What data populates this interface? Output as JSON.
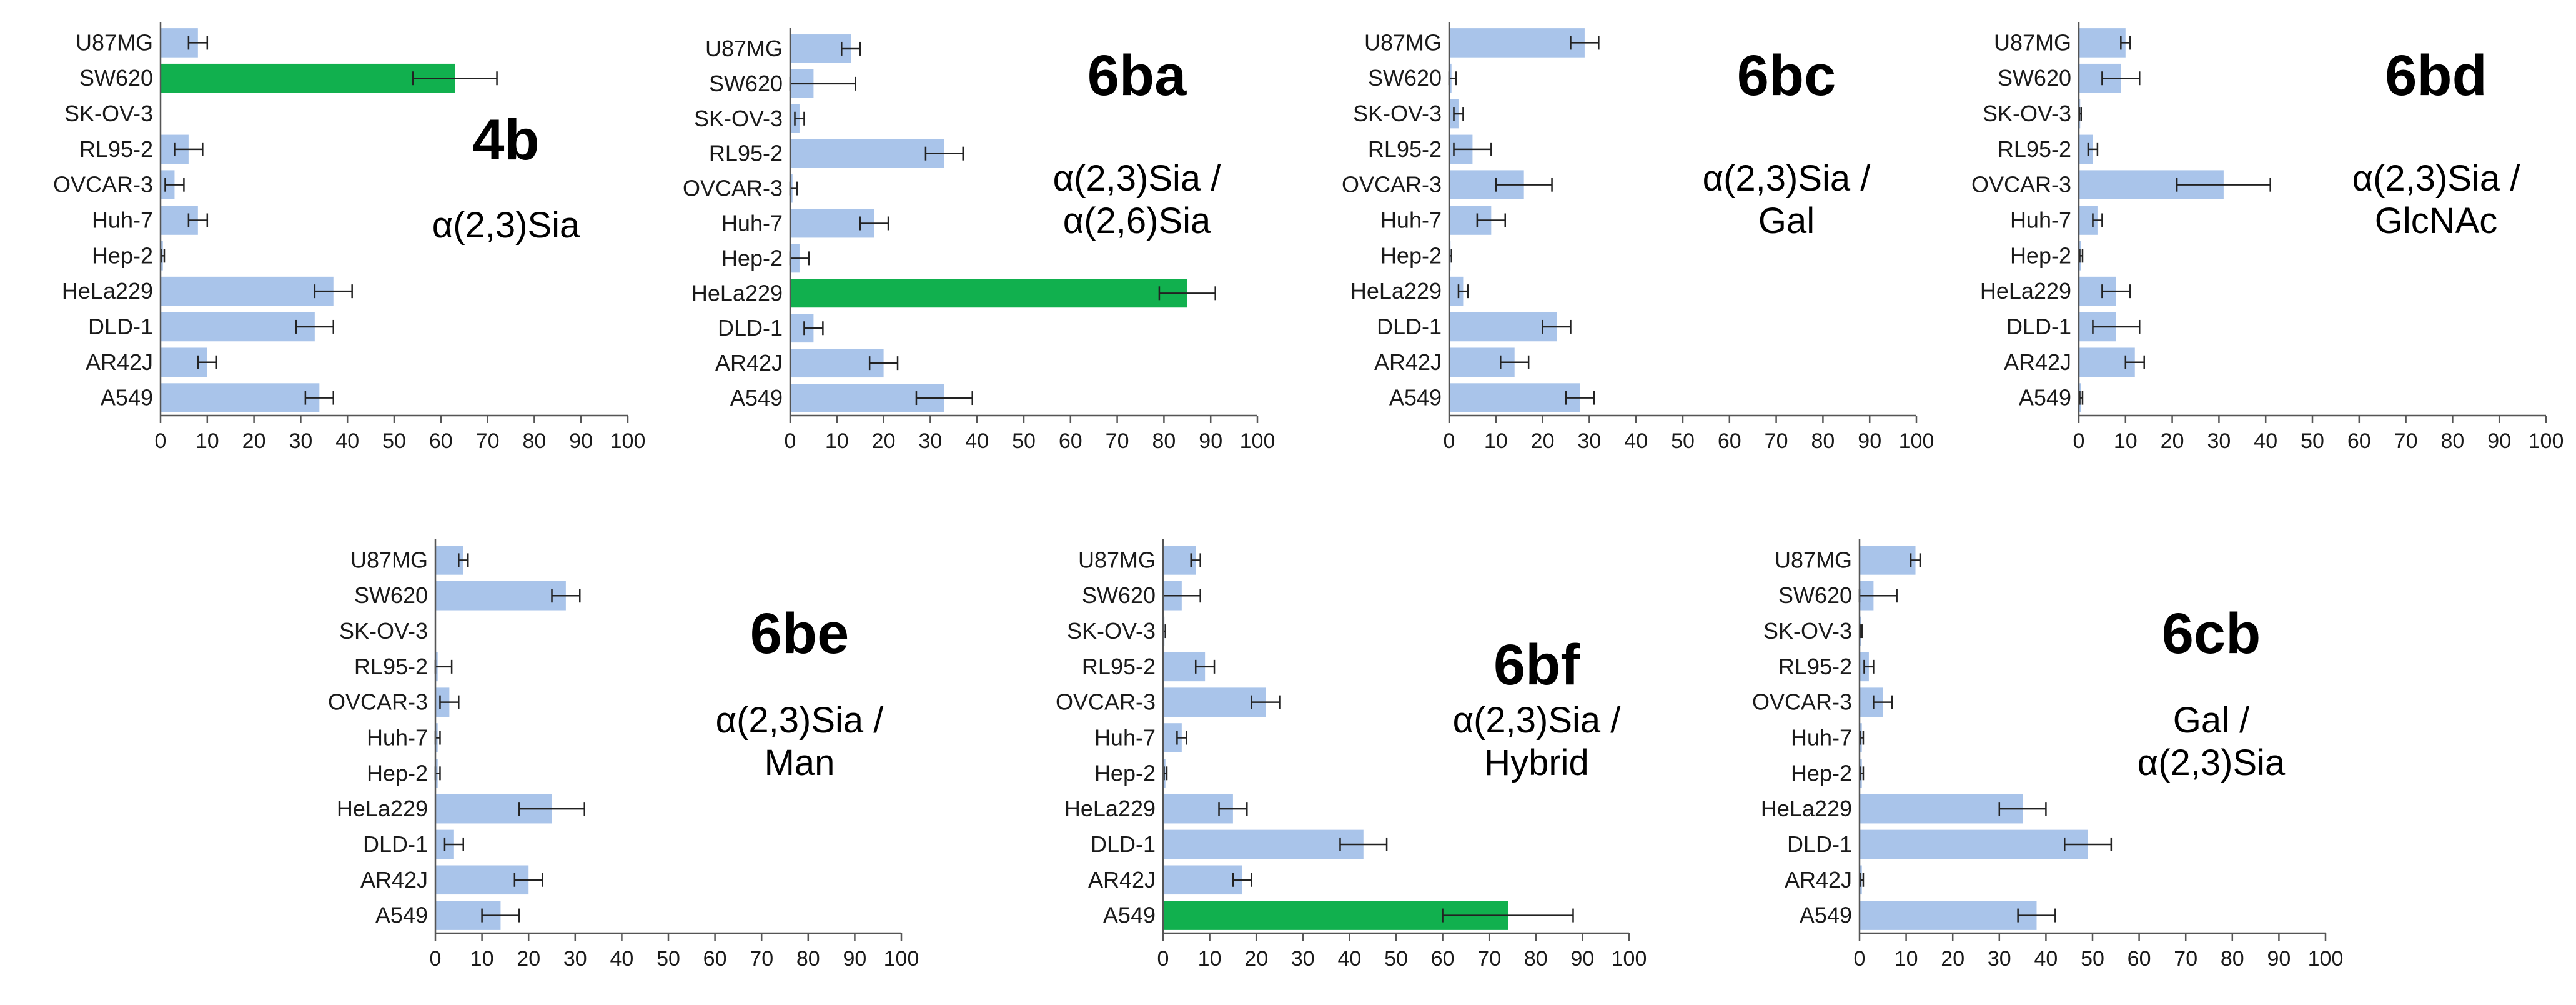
{
  "colors": {
    "bar": "#a9c4ea",
    "highlight": "#11b04e",
    "axis": "#555555",
    "error": "#222222"
  },
  "chart_data": [
    {
      "type": "bar",
      "orientation": "horizontal",
      "title": "4b",
      "subtitle": [
        "α(2,3)Sia"
      ],
      "categories": [
        "U87MG",
        "SW620",
        "SK-OV-3",
        "RL95-2",
        "OVCAR-3",
        "Huh-7",
        "Hep-2",
        "HeLa229",
        "DLD-1",
        "AR42J",
        "A549"
      ],
      "values": [
        8,
        63,
        0,
        6,
        3,
        8,
        0.5,
        37,
        33,
        10,
        34
      ],
      "errors": [
        2,
        9,
        0,
        3,
        2,
        2,
        0.3,
        4,
        4,
        2,
        3
      ],
      "highlight": [
        1
      ],
      "ticks": [
        "0",
        "10",
        "20",
        "30",
        "40",
        "50",
        "60",
        "70",
        "80",
        "90",
        "100"
      ],
      "xlim": [
        0,
        100
      ]
    },
    {
      "type": "bar",
      "orientation": "horizontal",
      "title": "6ba",
      "subtitle": [
        "α(2,3)Sia /",
        "α(2,6)Sia"
      ],
      "categories": [
        "U87MG",
        "SW620",
        "SK-OV-3",
        "RL95-2",
        "OVCAR-3",
        "Huh-7",
        "Hep-2",
        "HeLa229",
        "DLD-1",
        "AR42J",
        "A549"
      ],
      "values": [
        13,
        5,
        2,
        33,
        0.5,
        18,
        2,
        85,
        5,
        20,
        33
      ],
      "errors": [
        2,
        9,
        1,
        4,
        1,
        3,
        2,
        6,
        2,
        3,
        6
      ],
      "highlight": [
        7
      ],
      "ticks": [
        "0",
        "10",
        "20",
        "30",
        "40",
        "50",
        "60",
        "70",
        "80",
        "90",
        "100"
      ],
      "xlim": [
        0,
        100
      ]
    },
    {
      "type": "bar",
      "orientation": "horizontal",
      "title": "6bc",
      "subtitle": [
        "α(2,3)Sia /",
        "Gal"
      ],
      "categories": [
        "U87MG",
        "SW620",
        "SK-OV-3",
        "RL95-2",
        "OVCAR-3",
        "Huh-7",
        "Hep-2",
        "HeLa229",
        "DLD-1",
        "AR42J",
        "A549"
      ],
      "values": [
        29,
        0.5,
        2,
        5,
        16,
        9,
        0.3,
        3,
        23,
        14,
        28
      ],
      "errors": [
        3,
        1,
        1,
        4,
        6,
        3,
        0.2,
        1,
        3,
        3,
        3
      ],
      "highlight": [],
      "ticks": [
        "0",
        "10",
        "20",
        "30",
        "40",
        "50",
        "60",
        "70",
        "80",
        "90",
        "100"
      ],
      "xlim": [
        0,
        100
      ]
    },
    {
      "type": "bar",
      "orientation": "horizontal",
      "title": "6bd",
      "subtitle": [
        "α(2,3)Sia /",
        "GlcNAc"
      ],
      "categories": [
        "U87MG",
        "SW620",
        "SK-OV-3",
        "RL95-2",
        "OVCAR-3",
        "Huh-7",
        "Hep-2",
        "HeLa229",
        "DLD-1",
        "AR42J",
        "A549"
      ],
      "values": [
        10,
        9,
        0.3,
        3,
        31,
        4,
        0.5,
        8,
        8,
        12,
        0.5
      ],
      "errors": [
        1,
        4,
        0.2,
        1,
        10,
        1,
        0.3,
        3,
        5,
        2,
        0.3
      ],
      "highlight": [],
      "ticks": [
        "0",
        "10",
        "20",
        "30",
        "40",
        "50",
        "60",
        "70",
        "80",
        "90",
        "100"
      ],
      "xlim": [
        0,
        100
      ]
    },
    {
      "type": "bar",
      "orientation": "horizontal",
      "title": "6be",
      "subtitle": [
        "α(2,3)Sia /",
        "Man"
      ],
      "categories": [
        "U87MG",
        "SW620",
        "SK-OV-3",
        "RL95-2",
        "OVCAR-3",
        "Huh-7",
        "Hep-2",
        "HeLa229",
        "DLD-1",
        "AR42J",
        "A549"
      ],
      "values": [
        6,
        28,
        0,
        0.5,
        3,
        0.5,
        0.5,
        25,
        4,
        20,
        14
      ],
      "errors": [
        1,
        3,
        0,
        3,
        2,
        0.5,
        0.5,
        7,
        2,
        3,
        4
      ],
      "highlight": [],
      "ticks": [
        "0",
        "10",
        "20",
        "30",
        "40",
        "50",
        "60",
        "70",
        "80",
        "90",
        "100"
      ],
      "xlim": [
        0,
        100
      ]
    },
    {
      "type": "bar",
      "orientation": "horizontal",
      "title": "6bf",
      "subtitle": [
        "α(2,3)Sia /",
        "Hybrid"
      ],
      "categories": [
        "U87MG",
        "SW620",
        "SK-OV-3",
        "RL95-2",
        "OVCAR-3",
        "Huh-7",
        "Hep-2",
        "HeLa229",
        "DLD-1",
        "AR42J",
        "A549"
      ],
      "values": [
        7,
        4,
        0.3,
        9,
        22,
        4,
        0.5,
        15,
        43,
        17,
        74
      ],
      "errors": [
        1,
        4,
        0.2,
        2,
        3,
        1,
        0.3,
        3,
        5,
        2,
        14
      ],
      "highlight": [
        10
      ],
      "ticks": [
        "0",
        "10",
        "20",
        "30",
        "40",
        "50",
        "60",
        "70",
        "80",
        "90",
        "100"
      ],
      "xlim": [
        0,
        100
      ]
    },
    {
      "type": "bar",
      "orientation": "horizontal",
      "title": "6cb",
      "subtitle": [
        "Gal /",
        "α(2,3)Sia"
      ],
      "categories": [
        "U87MG",
        "SW620",
        "SK-OV-3",
        "RL95-2",
        "OVCAR-3",
        "Huh-7",
        "Hep-2",
        "HeLa229",
        "DLD-1",
        "AR42J",
        "A549"
      ],
      "values": [
        12,
        3,
        0.3,
        2,
        5,
        0.5,
        0.5,
        35,
        49,
        0.5,
        38
      ],
      "errors": [
        1,
        5,
        0.2,
        1,
        2,
        0.3,
        0.3,
        5,
        5,
        0.3,
        4
      ],
      "highlight": [],
      "ticks": [
        "0",
        "10",
        "20",
        "30",
        "40",
        "50",
        "60",
        "70",
        "80",
        "90",
        "100"
      ],
      "xlim": [
        0,
        100
      ]
    }
  ]
}
